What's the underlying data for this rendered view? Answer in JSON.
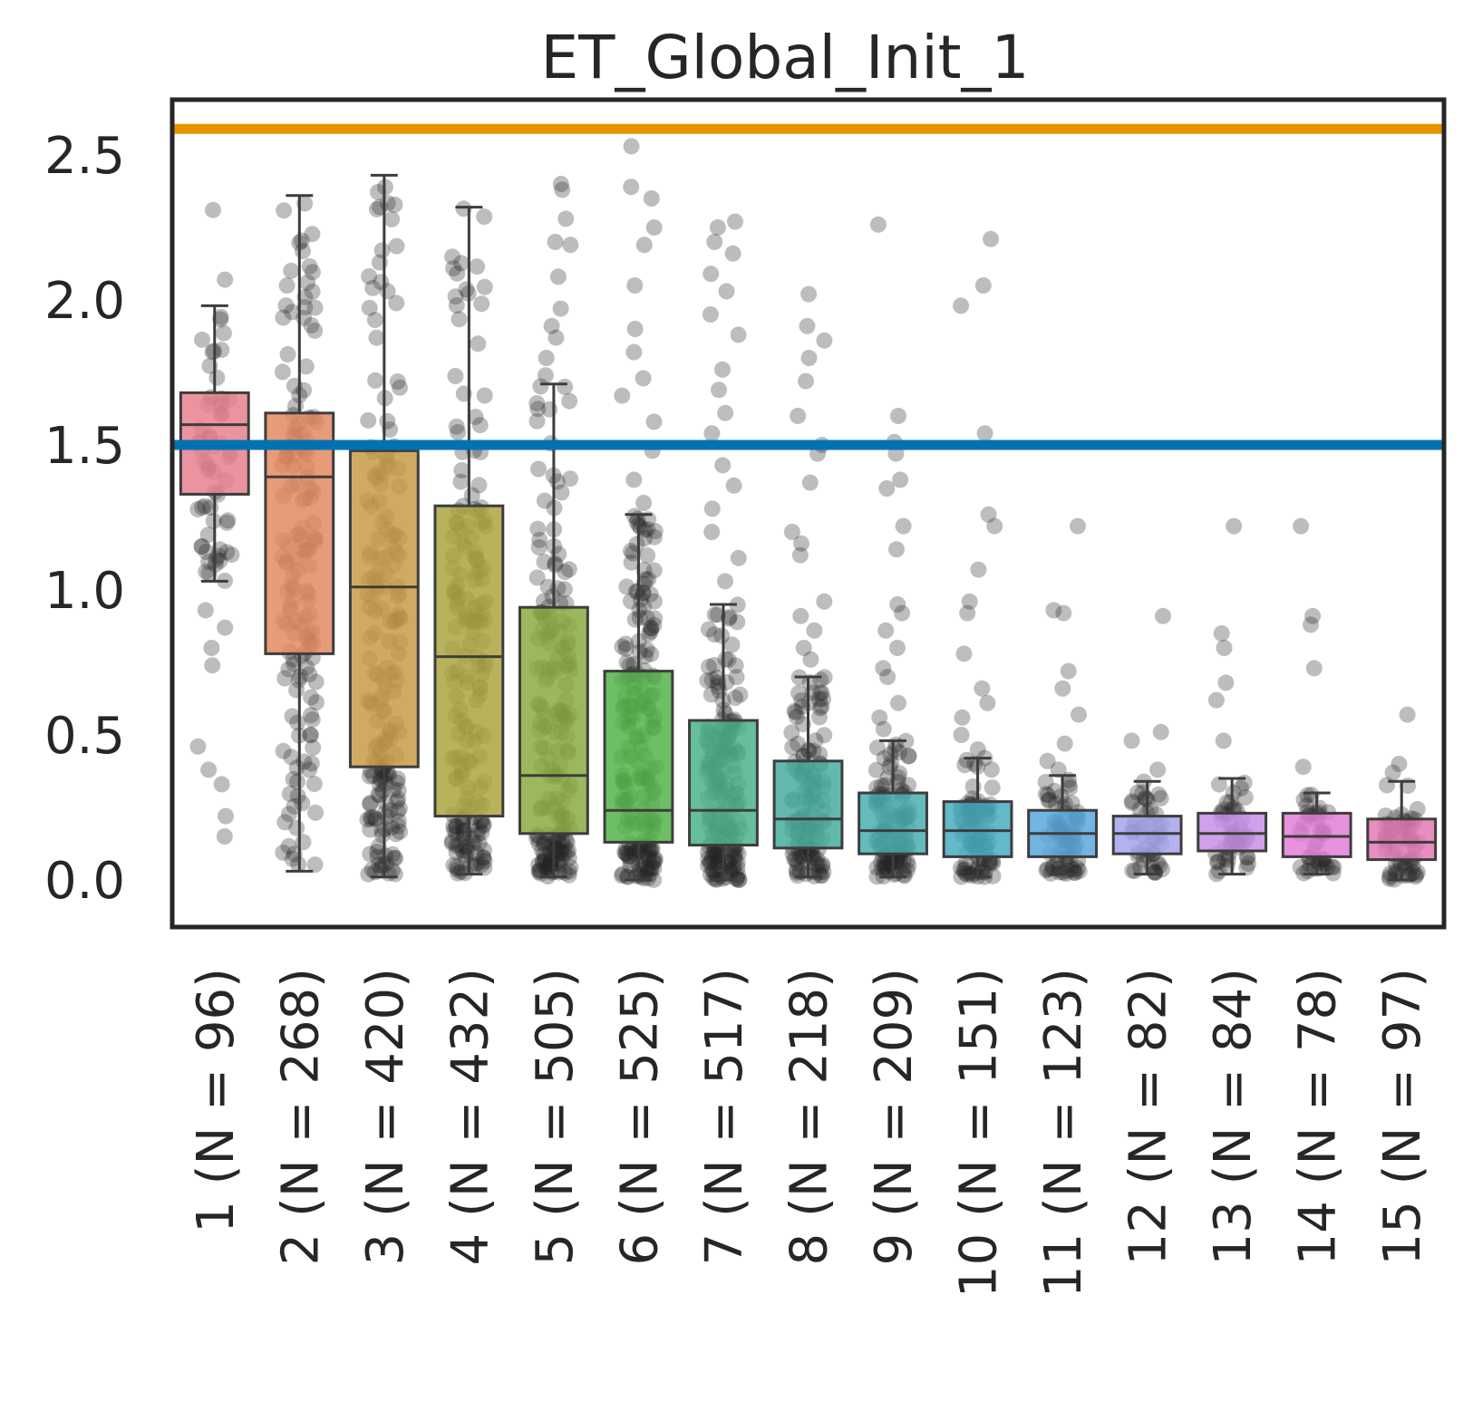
{
  "chart_data": {
    "type": "box",
    "title": "ET_Global_Init_1",
    "xlabel": "",
    "ylabel": "",
    "ylim": [
      -0.15,
      2.72
    ],
    "yticks": [
      "0.0",
      "0.5",
      "1.0",
      "1.5",
      "2.0",
      "2.5"
    ],
    "grid": false,
    "categories": [
      "1 (N = 96)",
      "2 (N = 268)",
      "3 (N = 420)",
      "4 (N = 432)",
      "5 (N = 505)",
      "6 (N = 525)",
      "7 (N = 517)",
      "8 (N = 218)",
      "9 (N = 209)",
      "10 (N = 151)",
      "11 (N = 123)",
      "12 (N = 82)",
      "13 (N = 84)",
      "14 (N = 78)",
      "15 (N = 97)"
    ],
    "boxes": [
      {
        "q1": 1.33,
        "median": 1.57,
        "q3": 1.68,
        "whisker_low": 1.03,
        "whisker_high": 1.98,
        "color": "#e8808e"
      },
      {
        "q1": 0.78,
        "median": 1.39,
        "q3": 1.61,
        "whisker_low": 0.03,
        "whisker_high": 2.36,
        "color": "#e38a62"
      },
      {
        "q1": 0.39,
        "median": 1.01,
        "q3": 1.48,
        "whisker_low": 0.01,
        "whisker_high": 2.43,
        "color": "#c99b47"
      },
      {
        "q1": 0.22,
        "median": 0.77,
        "q3": 1.29,
        "whisker_low": 0.02,
        "whisker_high": 2.32,
        "color": "#ada441"
      },
      {
        "q1": 0.16,
        "median": 0.36,
        "q3": 0.94,
        "whisker_low": 0.01,
        "whisker_high": 1.71,
        "color": "#8aac41"
      },
      {
        "q1": 0.13,
        "median": 0.24,
        "q3": 0.72,
        "whisker_low": 0.0,
        "whisker_high": 1.26,
        "color": "#55b34a"
      },
      {
        "q1": 0.12,
        "median": 0.24,
        "q3": 0.55,
        "whisker_low": 0.0,
        "whisker_high": 0.95,
        "color": "#4eb389"
      },
      {
        "q1": 0.11,
        "median": 0.21,
        "q3": 0.41,
        "whisker_low": 0.01,
        "whisker_high": 0.7,
        "color": "#48ae9d"
      },
      {
        "q1": 0.09,
        "median": 0.17,
        "q3": 0.3,
        "whisker_low": 0.01,
        "whisker_high": 0.48,
        "color": "#4aafaf"
      },
      {
        "q1": 0.08,
        "median": 0.17,
        "q3": 0.27,
        "whisker_low": 0.01,
        "whisker_high": 0.42,
        "color": "#48acc1"
      },
      {
        "q1": 0.08,
        "median": 0.16,
        "q3": 0.24,
        "whisker_low": 0.02,
        "whisker_high": 0.36,
        "color": "#5aa8dd"
      },
      {
        "q1": 0.09,
        "median": 0.16,
        "q3": 0.22,
        "whisker_low": 0.02,
        "whisker_high": 0.34,
        "color": "#a6a4ec"
      },
      {
        "q1": 0.1,
        "median": 0.16,
        "q3": 0.23,
        "whisker_low": 0.02,
        "whisker_high": 0.35,
        "color": "#c890e6"
      },
      {
        "q1": 0.08,
        "median": 0.15,
        "q3": 0.23,
        "whisker_low": 0.02,
        "whisker_high": 0.3,
        "color": "#e47fd9"
      },
      {
        "q1": 0.07,
        "median": 0.13,
        "q3": 0.21,
        "whisker_low": 0.0,
        "whisker_high": 0.34,
        "color": "#e27ab4"
      }
    ],
    "outliers": [
      [
        2.31,
        2.07,
        1.19,
        1.13,
        0.93,
        0.87,
        0.8,
        0.74,
        0.46,
        0.38,
        0.33,
        0.22,
        0.15
      ],
      [
        2.06,
        2.01
      ],
      [],
      [],
      [
        2.4,
        2.38,
        2.28,
        2.2,
        2.19,
        2.08,
        1.97,
        1.91,
        1.87,
        1.8,
        1.74
      ],
      [
        2.53,
        2.39,
        2.35,
        2.25,
        2.19,
        2.05,
        1.9,
        1.82,
        1.73,
        1.67,
        1.58,
        1.48,
        1.38,
        1.3
      ],
      [
        2.27,
        2.25,
        2.2,
        2.16,
        2.09,
        2.03,
        1.95,
        1.88,
        1.76,
        1.69,
        1.61,
        1.54,
        1.43,
        1.36,
        1.28,
        1.2,
        1.11,
        1.03
      ],
      [
        2.02,
        1.91,
        1.86,
        1.8,
        1.72,
        1.6,
        1.5,
        1.47,
        1.37,
        1.2,
        1.16,
        1.12,
        0.96,
        0.91,
        0.86,
        0.8,
        0.76
      ],
      [
        2.26,
        1.6,
        1.51,
        1.47,
        1.38,
        1.35,
        1.22,
        1.14,
        0.95,
        0.92,
        0.86,
        0.8,
        0.73,
        0.7,
        0.61,
        0.56,
        0.52
      ],
      [
        2.21,
        2.05,
        1.98,
        1.54,
        1.26,
        1.22,
        1.07,
        0.96,
        0.92,
        0.78,
        0.66,
        0.61,
        0.56,
        0.5,
        0.45
      ],
      [
        1.22,
        0.93,
        0.92,
        0.72,
        0.66,
        0.57,
        0.47,
        0.41,
        0.38
      ],
      [
        0.91,
        0.51,
        0.48,
        0.38
      ],
      [
        1.22,
        0.85,
        0.8,
        0.68,
        0.62,
        0.48
      ],
      [
        1.22,
        0.91,
        0.88,
        0.73,
        0.39
      ],
      [
        0.57,
        0.4,
        0.37
      ]
    ],
    "reference_lines": [
      {
        "value": 2.59,
        "color": "#e69500"
      },
      {
        "value": 1.5,
        "color": "#0072b2"
      }
    ]
  }
}
